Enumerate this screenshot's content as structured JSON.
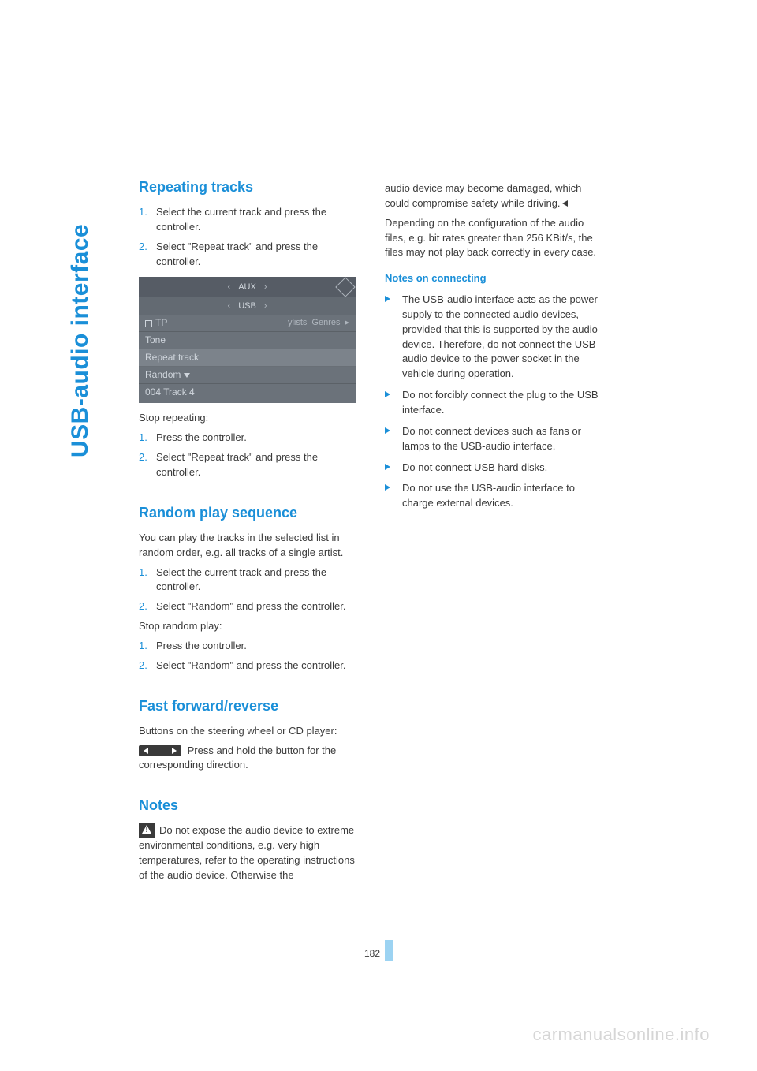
{
  "page_number": "182",
  "sidebar_label": "USB-audio interface",
  "watermark": "carmanualsonline.info",
  "colors": {
    "accent": "#1a8fd8",
    "text": "#3a3a3a",
    "page_bar": "#9cd3f2",
    "screenshot_bg": "#6b727a",
    "watermark": "#d6d6d6"
  },
  "left": {
    "h_repeat": "Repeating tracks",
    "repeat_steps": [
      "Select the current track and press the controller.",
      "Select \"Repeat track\" and press the controller."
    ],
    "screenshot": {
      "top_label": "AUX",
      "sub_label": "USB",
      "rows": [
        "TP",
        "Tone",
        "Repeat track",
        "Random",
        "004 Track 4"
      ],
      "tabs": [
        "ylists",
        "Genres"
      ]
    },
    "stop_repeat_intro": "Stop repeating:",
    "stop_repeat_steps": [
      "Press the controller.",
      "Select \"Repeat track\" and press the controller."
    ],
    "h_random": "Random play sequence",
    "random_intro": "You can play the tracks in the selected list in random order, e.g. all tracks of a single artist.",
    "random_steps": [
      "Select the current track and press the controller.",
      "Select \"Random\" and press the controller."
    ],
    "stop_random_intro": "Stop random play:",
    "stop_random_steps": [
      "Press the controller.",
      "Select \"Random\" and press the controller."
    ],
    "h_ff": "Fast forward/reverse",
    "ff_intro": "Buttons on the steering wheel or CD player:",
    "ff_text": " Press and hold the button for the corresponding direction.",
    "h_notes": "Notes",
    "notes_warn": "Do not expose the audio device to extreme environmental conditions, e.g. very high temperatures, refer to the operating instructions of the audio device. Otherwise the"
  },
  "right": {
    "cont_warn": "audio device may become damaged, which could compromise safety while driving.",
    "config_para": "Depending on the configuration of the audio files, e.g. bit rates greater than 256 KBit/s, the files may not play back correctly in every case.",
    "h_connect": "Notes on connecting",
    "connect_items": [
      "The USB-audio interface acts as the power supply to the connected audio devices, provided that this is supported by the audio device. Therefore, do not connect the USB audio device to the power socket in the vehicle during operation.",
      "Do not forcibly connect the plug to the USB interface.",
      "Do not connect devices such as fans or lamps to the USB-audio interface.",
      "Do not connect USB hard disks.",
      "Do not use the USB-audio interface to charge external devices."
    ]
  }
}
